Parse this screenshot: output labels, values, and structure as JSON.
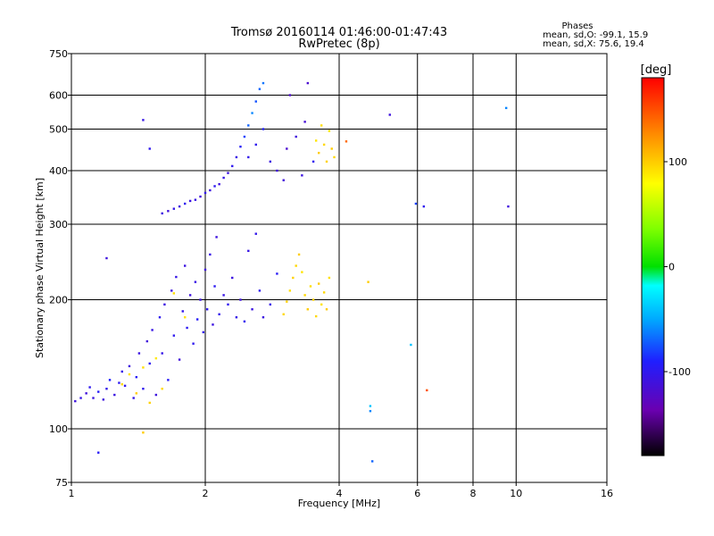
{
  "chart_data": {
    "type": "scatter",
    "title": "Tromsø 20160114 01:46:00-01:47:43",
    "subtitle": "RwPretec (8p)",
    "xlabel": "Frequency [MHz]",
    "ylabel": "Stationary phase Virtual Height [km]",
    "x_scale": "log",
    "y_scale": "log",
    "xlim": [
      1,
      16
    ],
    "ylim": [
      75,
      750
    ],
    "x_ticks": [
      "1",
      "2",
      "4",
      "6",
      "8",
      "10",
      "16"
    ],
    "y_ticks": [
      "75",
      "100",
      "200",
      "300",
      "400",
      "500",
      "600",
      "750"
    ],
    "grid": true,
    "stats": {
      "header": "Phases",
      "line_o": "mean, sd,O: -99.1, 15.9",
      "line_x": "mean, sd,X:  75.6, 19.4"
    },
    "colorbar": {
      "label": "[deg]",
      "range": [
        -180,
        180
      ],
      "ticks": [
        "100",
        "0",
        "-100"
      ],
      "tick_values": [
        100,
        0,
        -100
      ]
    },
    "clusters": [
      {
        "name": "lower-trace",
        "points": [
          [
            1.02,
            116,
            -110
          ],
          [
            1.05,
            118,
            -105
          ],
          [
            1.08,
            121,
            -112
          ],
          [
            1.1,
            125,
            -100
          ],
          [
            1.12,
            118,
            -108
          ],
          [
            1.15,
            122,
            -95
          ],
          [
            1.18,
            117,
            -110
          ],
          [
            1.2,
            124,
            -102
          ],
          [
            1.22,
            130,
            -90
          ],
          [
            1.25,
            120,
            -108
          ],
          [
            1.28,
            128,
            -98
          ],
          [
            1.3,
            136,
            -105
          ],
          [
            1.32,
            126,
            -100
          ],
          [
            1.35,
            140,
            -110
          ],
          [
            1.38,
            118,
            -104
          ],
          [
            1.4,
            132,
            -95
          ],
          [
            1.42,
            150,
            -108
          ],
          [
            1.45,
            124,
            -100
          ],
          [
            1.48,
            160,
            -112
          ],
          [
            1.5,
            142,
            -98
          ],
          [
            1.52,
            170,
            -106
          ],
          [
            1.55,
            120,
            -110
          ],
          [
            1.58,
            182,
            -100
          ],
          [
            1.6,
            150,
            -104
          ],
          [
            1.62,
            195,
            -108
          ],
          [
            1.65,
            130,
            -96
          ],
          [
            1.68,
            210,
            -110
          ],
          [
            1.7,
            165,
            -100
          ],
          [
            1.72,
            226,
            -105
          ],
          [
            1.75,
            145,
            -112
          ],
          [
            1.78,
            188,
            -102
          ],
          [
            1.8,
            240,
            -108
          ],
          [
            1.82,
            172,
            -98
          ],
          [
            1.85,
            205,
            -110
          ],
          [
            1.88,
            158,
            -100
          ],
          [
            1.9,
            220,
            -106
          ],
          [
            1.92,
            180,
            -95
          ],
          [
            1.95,
            200,
            -108
          ],
          [
            1.98,
            168,
            -102
          ],
          [
            2.0,
            235,
            -110
          ],
          [
            2.02,
            190,
            -100
          ],
          [
            2.05,
            255,
            -105
          ],
          [
            2.08,
            175,
            -108
          ],
          [
            2.1,
            215,
            -98
          ],
          [
            2.12,
            280,
            -110
          ],
          [
            2.15,
            185,
            -102
          ],
          [
            2.2,
            205,
            -106
          ],
          [
            2.25,
            195,
            -100
          ],
          [
            2.3,
            225,
            -108
          ],
          [
            2.35,
            182,
            -104
          ],
          [
            2.4,
            200,
            -110
          ],
          [
            2.45,
            178,
            -100
          ],
          [
            2.5,
            260,
            -106
          ],
          [
            2.55,
            190,
            -108
          ],
          [
            2.6,
            285,
            -102
          ],
          [
            2.65,
            210,
            -100
          ],
          [
            2.7,
            182,
            -108
          ],
          [
            2.8,
            195,
            -104
          ],
          [
            2.9,
            230,
            -96
          ],
          [
            1.3,
            127,
            95
          ],
          [
            1.35,
            134,
            90
          ],
          [
            1.4,
            121,
            100
          ],
          [
            1.45,
            139,
            92
          ],
          [
            1.5,
            115,
            98
          ],
          [
            1.55,
            146,
            88
          ],
          [
            1.6,
            124,
            95
          ],
          [
            1.7,
            207,
            92
          ],
          [
            1.8,
            182,
            90
          ]
        ]
      },
      {
        "name": "upper-trace",
        "points": [
          [
            1.6,
            318,
            -108
          ],
          [
            1.65,
            322,
            -112
          ],
          [
            1.7,
            326,
            -104
          ],
          [
            1.75,
            330,
            -110
          ],
          [
            1.8,
            335,
            -100
          ],
          [
            1.85,
            340,
            -108
          ],
          [
            1.9,
            342,
            -106
          ],
          [
            1.95,
            348,
            -112
          ],
          [
            2.0,
            355,
            -102
          ],
          [
            2.05,
            360,
            -108
          ],
          [
            2.1,
            368,
            -100
          ],
          [
            2.15,
            372,
            -110
          ],
          [
            2.2,
            385,
            -104
          ],
          [
            2.25,
            395,
            -108
          ],
          [
            2.3,
            410,
            -100
          ],
          [
            2.35,
            430,
            -106
          ],
          [
            2.4,
            455,
            -95
          ],
          [
            2.45,
            480,
            -80
          ],
          [
            2.5,
            510,
            -70
          ],
          [
            2.55,
            545,
            -60
          ],
          [
            2.6,
            580,
            -75
          ],
          [
            2.65,
            620,
            -70
          ],
          [
            2.7,
            640,
            -65
          ],
          [
            2.5,
            430,
            -102
          ],
          [
            2.6,
            460,
            -100
          ],
          [
            2.7,
            500,
            -90
          ],
          [
            2.8,
            420,
            -108
          ],
          [
            2.9,
            400,
            -110
          ],
          [
            3.0,
            380,
            -112
          ],
          [
            3.05,
            450,
            -118
          ],
          [
            3.1,
            600,
            -120
          ],
          [
            3.2,
            480,
            -110
          ],
          [
            3.3,
            390,
            -108
          ],
          [
            3.35,
            520,
            -115
          ],
          [
            3.4,
            640,
            -118
          ],
          [
            3.5,
            420,
            -100
          ],
          [
            3.55,
            470,
            90
          ],
          [
            3.6,
            440,
            100
          ],
          [
            3.65,
            510,
            92
          ],
          [
            3.7,
            460,
            95
          ],
          [
            3.75,
            420,
            98
          ],
          [
            3.8,
            495,
            88
          ],
          [
            3.85,
            450,
            100
          ],
          [
            3.9,
            430,
            95
          ]
        ]
      },
      {
        "name": "x-mode-lower",
        "points": [
          [
            3.0,
            185,
            95
          ],
          [
            3.05,
            198,
            100
          ],
          [
            3.1,
            210,
            92
          ],
          [
            3.15,
            225,
            98
          ],
          [
            3.2,
            240,
            95
          ],
          [
            3.25,
            255,
            100
          ],
          [
            3.3,
            232,
            90
          ],
          [
            3.35,
            205,
            95
          ],
          [
            3.4,
            190,
            100
          ],
          [
            3.45,
            215,
            92
          ],
          [
            3.5,
            200,
            98
          ],
          [
            3.55,
            183,
            95
          ],
          [
            3.6,
            218,
            100
          ],
          [
            3.65,
            195,
            90
          ],
          [
            3.7,
            208,
            95
          ],
          [
            3.75,
            190,
            100
          ],
          [
            3.8,
            225,
            92
          ]
        ]
      },
      {
        "name": "isolated",
        "points": [
          [
            1.2,
            250,
            -110
          ],
          [
            1.45,
            525,
            -105
          ],
          [
            1.5,
            450,
            -100
          ],
          [
            1.15,
            88,
            -95
          ],
          [
            1.45,
            98,
            100
          ],
          [
            4.15,
            468,
            140
          ],
          [
            4.65,
            220,
            100
          ],
          [
            4.7,
            113,
            -40
          ],
          [
            4.7,
            110,
            -60
          ],
          [
            4.75,
            84,
            -70
          ],
          [
            5.2,
            540,
            -110
          ],
          [
            5.8,
            157,
            -40
          ],
          [
            5.95,
            335,
            -80
          ],
          [
            6.2,
            330,
            -100
          ],
          [
            6.3,
            123,
            150
          ],
          [
            9.5,
            560,
            -60
          ],
          [
            9.6,
            330,
            -110
          ]
        ]
      }
    ]
  }
}
